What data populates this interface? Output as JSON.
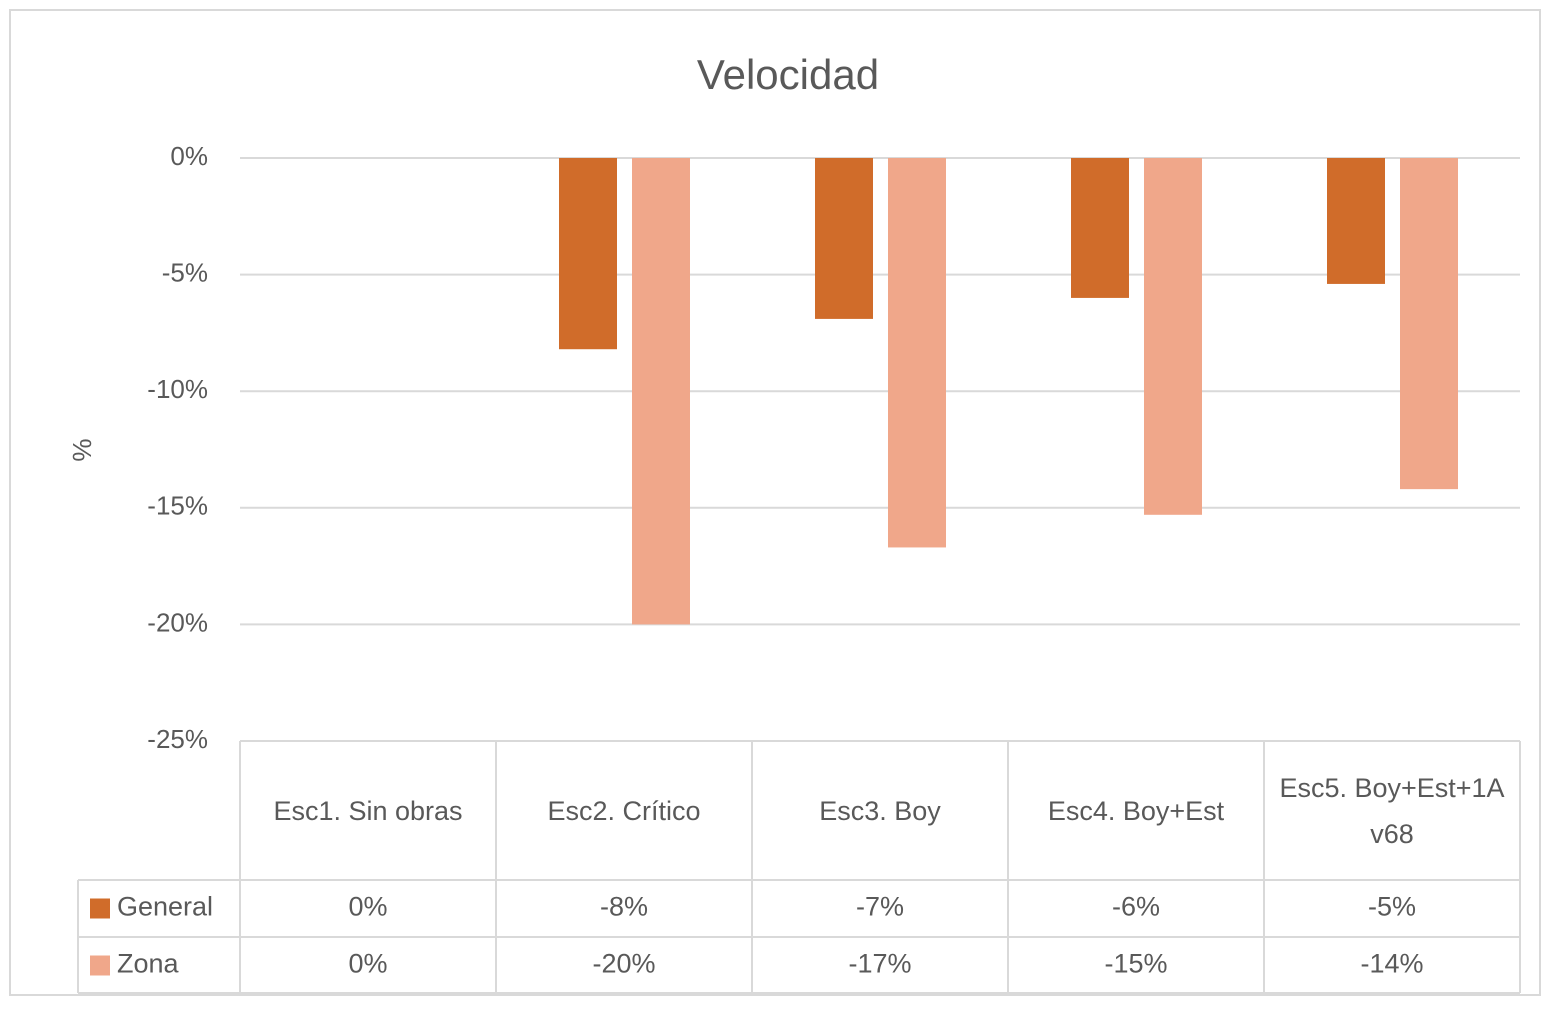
{
  "chart_data": {
    "type": "bar",
    "title": "Velocidad",
    "y_label": "%",
    "categories": [
      "Esc1. Sin obras",
      "Esc2. Crítico",
      "Esc3. Boy",
      "Esc4. Boy+Est",
      "Esc5. Boy+Est+1Av68"
    ],
    "series": [
      {
        "name": "General",
        "color": "#d06c2a",
        "values": [
          0,
          -8.2,
          -6.9,
          -6.0,
          -5.4
        ],
        "value_labels": [
          "0%",
          "-8%",
          "-7%",
          "-6%",
          "-5%"
        ]
      },
      {
        "name": "Zona",
        "color": "#f0a78a",
        "values": [
          0,
          -20.0,
          -16.7,
          -15.3,
          -14.2
        ],
        "value_labels": [
          "0%",
          "-20%",
          "-17%",
          "-15%",
          "-14%"
        ]
      }
    ],
    "ylim": [
      -25,
      0
    ],
    "yticks": [
      {
        "value": 0,
        "label": "0%"
      },
      {
        "value": -5,
        "label": "-5%"
      },
      {
        "value": -10,
        "label": "-10%"
      },
      {
        "value": -15,
        "label": "-15%"
      },
      {
        "value": -20,
        "label": "-20%"
      },
      {
        "value": -25,
        "label": "-25%"
      }
    ],
    "grid": true
  }
}
